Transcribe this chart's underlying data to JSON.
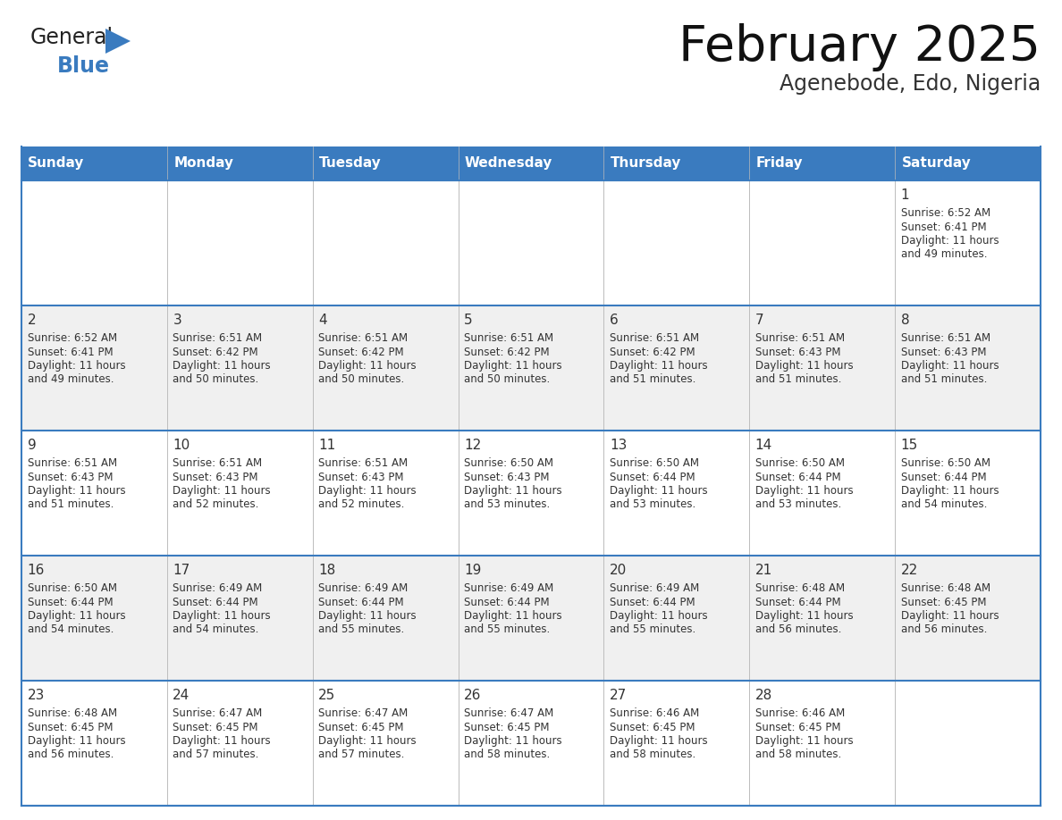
{
  "title": "February 2025",
  "subtitle": "Agenebode, Edo, Nigeria",
  "header_color": "#3A7BBF",
  "header_text_color": "#FFFFFF",
  "cell_bg_color": "#FFFFFF",
  "alt_row_color": "#F0F0F0",
  "border_color": "#3A7BBF",
  "text_color": "#333333",
  "days_of_week": [
    "Sunday",
    "Monday",
    "Tuesday",
    "Wednesday",
    "Thursday",
    "Friday",
    "Saturday"
  ],
  "calendar_data": [
    [
      null,
      null,
      null,
      null,
      null,
      null,
      {
        "day": 1,
        "sunrise": "6:52 AM",
        "sunset": "6:41 PM",
        "daylight_hours": 11,
        "daylight_minutes": 49
      }
    ],
    [
      {
        "day": 2,
        "sunrise": "6:52 AM",
        "sunset": "6:41 PM",
        "daylight_hours": 11,
        "daylight_minutes": 49
      },
      {
        "day": 3,
        "sunrise": "6:51 AM",
        "sunset": "6:42 PM",
        "daylight_hours": 11,
        "daylight_minutes": 50
      },
      {
        "day": 4,
        "sunrise": "6:51 AM",
        "sunset": "6:42 PM",
        "daylight_hours": 11,
        "daylight_minutes": 50
      },
      {
        "day": 5,
        "sunrise": "6:51 AM",
        "sunset": "6:42 PM",
        "daylight_hours": 11,
        "daylight_minutes": 50
      },
      {
        "day": 6,
        "sunrise": "6:51 AM",
        "sunset": "6:42 PM",
        "daylight_hours": 11,
        "daylight_minutes": 51
      },
      {
        "day": 7,
        "sunrise": "6:51 AM",
        "sunset": "6:43 PM",
        "daylight_hours": 11,
        "daylight_minutes": 51
      },
      {
        "day": 8,
        "sunrise": "6:51 AM",
        "sunset": "6:43 PM",
        "daylight_hours": 11,
        "daylight_minutes": 51
      }
    ],
    [
      {
        "day": 9,
        "sunrise": "6:51 AM",
        "sunset": "6:43 PM",
        "daylight_hours": 11,
        "daylight_minutes": 51
      },
      {
        "day": 10,
        "sunrise": "6:51 AM",
        "sunset": "6:43 PM",
        "daylight_hours": 11,
        "daylight_minutes": 52
      },
      {
        "day": 11,
        "sunrise": "6:51 AM",
        "sunset": "6:43 PM",
        "daylight_hours": 11,
        "daylight_minutes": 52
      },
      {
        "day": 12,
        "sunrise": "6:50 AM",
        "sunset": "6:43 PM",
        "daylight_hours": 11,
        "daylight_minutes": 53
      },
      {
        "day": 13,
        "sunrise": "6:50 AM",
        "sunset": "6:44 PM",
        "daylight_hours": 11,
        "daylight_minutes": 53
      },
      {
        "day": 14,
        "sunrise": "6:50 AM",
        "sunset": "6:44 PM",
        "daylight_hours": 11,
        "daylight_minutes": 53
      },
      {
        "day": 15,
        "sunrise": "6:50 AM",
        "sunset": "6:44 PM",
        "daylight_hours": 11,
        "daylight_minutes": 54
      }
    ],
    [
      {
        "day": 16,
        "sunrise": "6:50 AM",
        "sunset": "6:44 PM",
        "daylight_hours": 11,
        "daylight_minutes": 54
      },
      {
        "day": 17,
        "sunrise": "6:49 AM",
        "sunset": "6:44 PM",
        "daylight_hours": 11,
        "daylight_minutes": 54
      },
      {
        "day": 18,
        "sunrise": "6:49 AM",
        "sunset": "6:44 PM",
        "daylight_hours": 11,
        "daylight_minutes": 55
      },
      {
        "day": 19,
        "sunrise": "6:49 AM",
        "sunset": "6:44 PM",
        "daylight_hours": 11,
        "daylight_minutes": 55
      },
      {
        "day": 20,
        "sunrise": "6:49 AM",
        "sunset": "6:44 PM",
        "daylight_hours": 11,
        "daylight_minutes": 55
      },
      {
        "day": 21,
        "sunrise": "6:48 AM",
        "sunset": "6:44 PM",
        "daylight_hours": 11,
        "daylight_minutes": 56
      },
      {
        "day": 22,
        "sunrise": "6:48 AM",
        "sunset": "6:45 PM",
        "daylight_hours": 11,
        "daylight_minutes": 56
      }
    ],
    [
      {
        "day": 23,
        "sunrise": "6:48 AM",
        "sunset": "6:45 PM",
        "daylight_hours": 11,
        "daylight_minutes": 56
      },
      {
        "day": 24,
        "sunrise": "6:47 AM",
        "sunset": "6:45 PM",
        "daylight_hours": 11,
        "daylight_minutes": 57
      },
      {
        "day": 25,
        "sunrise": "6:47 AM",
        "sunset": "6:45 PM",
        "daylight_hours": 11,
        "daylight_minutes": 57
      },
      {
        "day": 26,
        "sunrise": "6:47 AM",
        "sunset": "6:45 PM",
        "daylight_hours": 11,
        "daylight_minutes": 58
      },
      {
        "day": 27,
        "sunrise": "6:46 AM",
        "sunset": "6:45 PM",
        "daylight_hours": 11,
        "daylight_minutes": 58
      },
      {
        "day": 28,
        "sunrise": "6:46 AM",
        "sunset": "6:45 PM",
        "daylight_hours": 11,
        "daylight_minutes": 58
      },
      null
    ]
  ],
  "logo_triangle_color": "#3A7BBF",
  "fig_width": 11.88,
  "fig_height": 9.18,
  "dpi": 100
}
